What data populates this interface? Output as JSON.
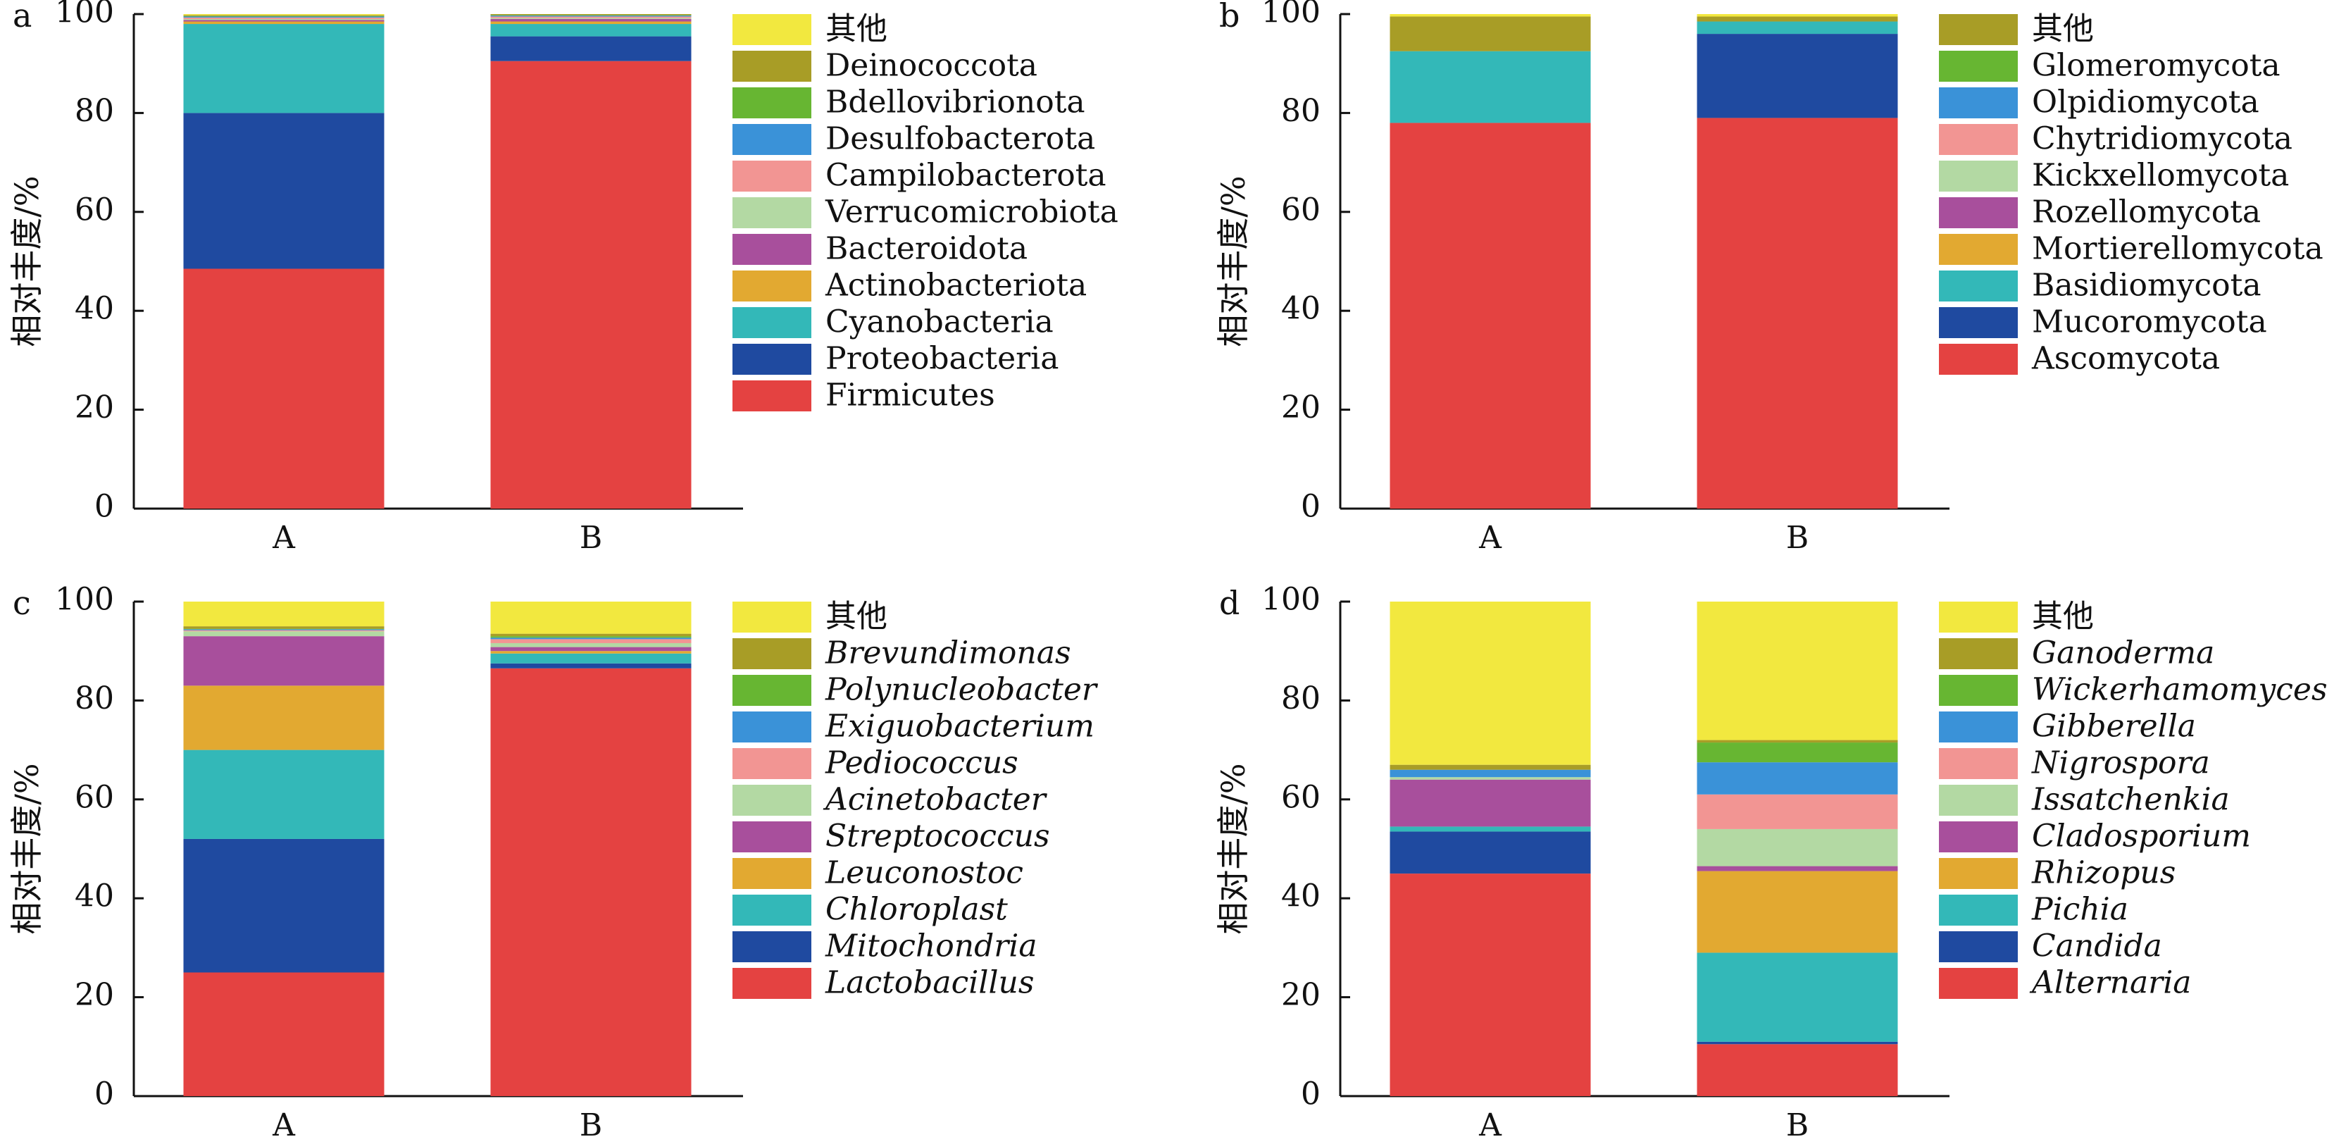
{
  "figure": {
    "chart_data": [
      {
        "type": "bar",
        "stacked": true,
        "panel_label": "a",
        "categories": [
          "A",
          "B"
        ],
        "ylabel": "相对丰度/%",
        "ylim": [
          0,
          100
        ],
        "yticks": [
          0,
          20,
          40,
          60,
          80,
          100
        ],
        "grid": false,
        "legend_position": "right",
        "legend_italic": false,
        "series": [
          {
            "name": "Firmicutes",
            "color": "#e44241",
            "values": [
              48.5,
              90.5
            ]
          },
          {
            "name": "Proteobacteria",
            "color": "#1f4aa0",
            "values": [
              31.5,
              5.0
            ]
          },
          {
            "name": "Cyanobacteria",
            "color": "#33b8b8",
            "values": [
              18.0,
              2.5
            ]
          },
          {
            "name": "Actinobacteriota",
            "color": "#e2a931",
            "values": [
              0.5,
              0.5
            ]
          },
          {
            "name": "Bacteroidota",
            "color": "#a84f9c",
            "values": [
              0.3,
              0.5
            ]
          },
          {
            "name": "Verrucomicrobiota",
            "color": "#b3d9a3",
            "values": [
              0.2,
              0.2
            ]
          },
          {
            "name": "Campilobacterota",
            "color": "#f29593",
            "values": [
              0.3,
              0.3
            ]
          },
          {
            "name": "Desulfobacterota",
            "color": "#3a92d8",
            "values": [
              0.2,
              0.2
            ]
          },
          {
            "name": "Bdellovibrionota",
            "color": "#67b632",
            "values": [
              0.1,
              0.1
            ]
          },
          {
            "name": "Deinococcota",
            "color": "#a89d26",
            "values": [
              0.2,
              0.2
            ]
          },
          {
            "name": "其他",
            "color": "#f2e83f",
            "values": [
              0.2,
              0.0
            ]
          }
        ]
      },
      {
        "type": "bar",
        "stacked": true,
        "panel_label": "b",
        "categories": [
          "A",
          "B"
        ],
        "ylabel": "相对丰度/%",
        "ylim": [
          0,
          100
        ],
        "yticks": [
          0,
          20,
          40,
          60,
          80,
          100
        ],
        "grid": false,
        "legend_position": "right",
        "legend_italic": false,
        "series": [
          {
            "name": "Ascomycota",
            "color": "#e44241",
            "values": [
              78.0,
              79.0
            ]
          },
          {
            "name": "Mucoromycota",
            "color": "#1f4aa0",
            "values": [
              0.0,
              17.0
            ]
          },
          {
            "name": "Basidiomycota",
            "color": "#33b8b8",
            "values": [
              14.5,
              2.5
            ]
          },
          {
            "name": "Mortierellomycota",
            "color": "#e2a931",
            "values": [
              0.0,
              0.0
            ]
          },
          {
            "name": "Rozellomycota",
            "color": "#a84f9c",
            "values": [
              0.0,
              0.0
            ]
          },
          {
            "name": "Kickxellomycota",
            "color": "#b3d9a3",
            "values": [
              0.0,
              0.0
            ]
          },
          {
            "name": "Chytridiomycota",
            "color": "#f29593",
            "values": [
              0.0,
              0.0
            ]
          },
          {
            "name": "Olpidiomycota",
            "color": "#3a92d8",
            "values": [
              0.0,
              0.0
            ]
          },
          {
            "name": "Glomeromycota",
            "color": "#67b632",
            "values": [
              0.0,
              0.0
            ]
          },
          {
            "name": "其他",
            "color": "#a89d26",
            "values": [
              7.0,
              1.0
            ]
          },
          {
            "name": "",
            "color": "#f2e83f",
            "values": [
              0.5,
              0.5
            ]
          }
        ]
      },
      {
        "type": "bar",
        "stacked": true,
        "panel_label": "c",
        "categories": [
          "A",
          "B"
        ],
        "ylabel": "相对丰度/%",
        "ylim": [
          0,
          100
        ],
        "yticks": [
          0,
          20,
          40,
          60,
          80,
          100
        ],
        "grid": false,
        "legend_position": "right",
        "legend_italic": true,
        "series": [
          {
            "name": "Lactobacillus",
            "color": "#e44241",
            "values": [
              25.0,
              86.5
            ]
          },
          {
            "name": "Mitochondria",
            "color": "#1f4aa0",
            "values": [
              27.0,
              1.0
            ]
          },
          {
            "name": "Chloroplast",
            "color": "#33b8b8",
            "values": [
              18.0,
              2.0
            ]
          },
          {
            "name": "Leuconostoc",
            "color": "#e2a931",
            "values": [
              13.0,
              0.5
            ]
          },
          {
            "name": "Streptococcus",
            "color": "#a84f9c",
            "values": [
              10.0,
              0.8
            ]
          },
          {
            "name": "Acinetobacter",
            "color": "#b3d9a3",
            "values": [
              1.0,
              0.8
            ]
          },
          {
            "name": "Pediococcus",
            "color": "#f29593",
            "values": [
              0.2,
              0.8
            ]
          },
          {
            "name": "Exiguobacterium",
            "color": "#3a92d8",
            "values": [
              0.2,
              0.3
            ]
          },
          {
            "name": "Polynucleobacter",
            "color": "#67b632",
            "values": [
              0.1,
              0.3
            ]
          },
          {
            "name": "Brevundimonas",
            "color": "#a89d26",
            "values": [
              0.5,
              0.5
            ]
          },
          {
            "name": "其他",
            "color": "#f2e83f",
            "values": [
              5.0,
              6.5
            ]
          }
        ]
      },
      {
        "type": "bar",
        "stacked": true,
        "panel_label": "d",
        "categories": [
          "A",
          "B"
        ],
        "ylabel": "相对丰度/%",
        "ylim": [
          0,
          100
        ],
        "yticks": [
          0,
          20,
          40,
          60,
          80,
          100
        ],
        "grid": false,
        "legend_position": "right",
        "legend_italic": true,
        "series": [
          {
            "name": "Alternaria",
            "color": "#e44241",
            "values": [
              45.0,
              10.5
            ]
          },
          {
            "name": "Candida",
            "color": "#1f4aa0",
            "values": [
              8.5,
              0.5
            ]
          },
          {
            "name": "Pichia",
            "color": "#33b8b8",
            "values": [
              1.0,
              18.0
            ]
          },
          {
            "name": "Rhizopus",
            "color": "#e2a931",
            "values": [
              0.0,
              16.5
            ]
          },
          {
            "name": "Cladosporium",
            "color": "#a84f9c",
            "values": [
              9.5,
              1.0
            ]
          },
          {
            "name": "Issatchenkia",
            "color": "#b3d9a3",
            "values": [
              0.5,
              7.5
            ]
          },
          {
            "name": "Nigrospora",
            "color": "#f29593",
            "values": [
              0.0,
              7.0
            ]
          },
          {
            "name": "Gibberella",
            "color": "#3a92d8",
            "values": [
              1.5,
              6.5
            ]
          },
          {
            "name": "Wickerhamomyces",
            "color": "#67b632",
            "values": [
              0.0,
              4.0
            ]
          },
          {
            "name": "Ganoderma",
            "color": "#a89d26",
            "values": [
              1.0,
              0.5
            ]
          },
          {
            "name": "其他",
            "color": "#f2e83f",
            "values": [
              33.0,
              28.0
            ]
          }
        ]
      }
    ]
  }
}
